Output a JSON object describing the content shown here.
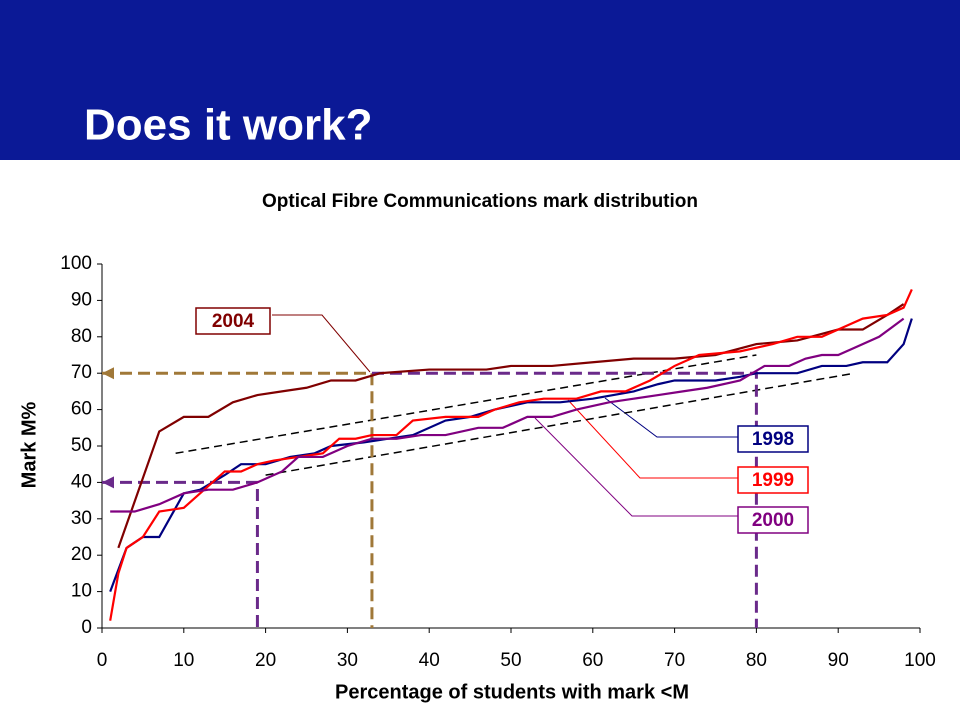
{
  "header": {
    "title": "Does it work?"
  },
  "chart_data": {
    "type": "line",
    "title": "Optical Fibre Communications mark distribution",
    "x_label": "Percentage of students with mark <M",
    "y_label": "Mark M%",
    "xlim": [
      0,
      100
    ],
    "ylim": [
      0,
      100
    ],
    "xticks": [
      0,
      10,
      20,
      30,
      40,
      50,
      60,
      70,
      80,
      90,
      100
    ],
    "yticks": [
      0,
      10,
      20,
      30,
      40,
      50,
      60,
      70,
      80,
      90,
      100
    ],
    "series": [
      {
        "name": "2004",
        "color": "#800000",
        "x": [
          2,
          7,
          10,
          13,
          16,
          19,
          22,
          25,
          28,
          31,
          34,
          40,
          47,
          50,
          55,
          60,
          65,
          70,
          75,
          80,
          85,
          90,
          93,
          96,
          98
        ],
        "values": [
          22,
          54,
          58,
          58,
          62,
          64,
          65,
          66,
          68,
          68,
          70,
          71,
          71,
          72,
          72,
          73,
          74,
          74,
          75,
          78,
          79,
          82,
          82,
          86,
          89
        ]
      },
      {
        "name": "1998",
        "color": "#000080",
        "x": [
          1,
          2,
          3,
          5,
          7,
          10,
          12,
          15,
          17,
          20,
          23,
          26,
          28,
          32,
          35,
          38,
          42,
          45,
          48,
          52,
          56,
          60,
          65,
          68,
          70,
          75,
          78,
          80,
          85,
          88,
          91,
          93,
          96,
          98,
          99
        ],
        "values": [
          10,
          16,
          22,
          25,
          25,
          37,
          38,
          42,
          45,
          45,
          47,
          48,
          50,
          51,
          52,
          53,
          57,
          58,
          60,
          62,
          62,
          63,
          65,
          67,
          68,
          68,
          69,
          70,
          70,
          72,
          72,
          73,
          73,
          78,
          85
        ]
      },
      {
        "name": "1999",
        "color": "#ff0000",
        "x": [
          1,
          2,
          3,
          5,
          7,
          10,
          12,
          15,
          17,
          19,
          21,
          24,
          27,
          29,
          31,
          33,
          36,
          38,
          42,
          46,
          48,
          51,
          54,
          58,
          61,
          64,
          67,
          70,
          73,
          78,
          82,
          85,
          88,
          91,
          93,
          96,
          98,
          99
        ],
        "values": [
          2,
          15,
          22,
          25,
          32,
          33,
          37,
          43,
          43,
          45,
          46,
          47,
          48,
          52,
          52,
          53,
          53,
          57,
          58,
          58,
          60,
          62,
          63,
          63,
          65,
          65,
          68,
          72,
          75,
          76,
          78,
          80,
          80,
          83,
          85,
          86,
          88,
          93
        ]
      },
      {
        "name": "2000",
        "color": "#800080",
        "x": [
          1,
          4,
          7,
          10,
          13,
          16,
          19,
          22,
          24,
          27,
          30,
          33,
          36,
          39,
          42,
          46,
          49,
          52,
          55,
          58,
          62,
          65,
          68,
          71,
          74,
          78,
          81,
          84,
          86,
          88,
          90,
          92,
          95,
          98
        ],
        "values": [
          32,
          32,
          34,
          37,
          38,
          38,
          40,
          43,
          47,
          47,
          50,
          52,
          52,
          53,
          53,
          55,
          55,
          58,
          58,
          60,
          62,
          63,
          64,
          65,
          66,
          68,
          72,
          72,
          74,
          75,
          75,
          77,
          80,
          85
        ]
      }
    ],
    "trend_lines": [
      {
        "color": "#000000",
        "x": [
          9,
          80
        ],
        "values": [
          48,
          75
        ]
      },
      {
        "color": "#000000",
        "x": [
          20,
          92
        ],
        "values": [
          42,
          70
        ]
      }
    ],
    "reference_lines": [
      {
        "color": "#a07838",
        "arrow": true,
        "x": [
          0,
          33,
          33
        ],
        "values": [
          70,
          70,
          0
        ]
      },
      {
        "color": "#6a2a8a",
        "arrow": true,
        "x": [
          0,
          19,
          19
        ],
        "values": [
          40,
          40,
          0
        ]
      },
      {
        "color": "#6a2a8a",
        "arrow": false,
        "x": [
          33,
          80,
          80
        ],
        "values": [
          70,
          70,
          0
        ]
      }
    ]
  }
}
